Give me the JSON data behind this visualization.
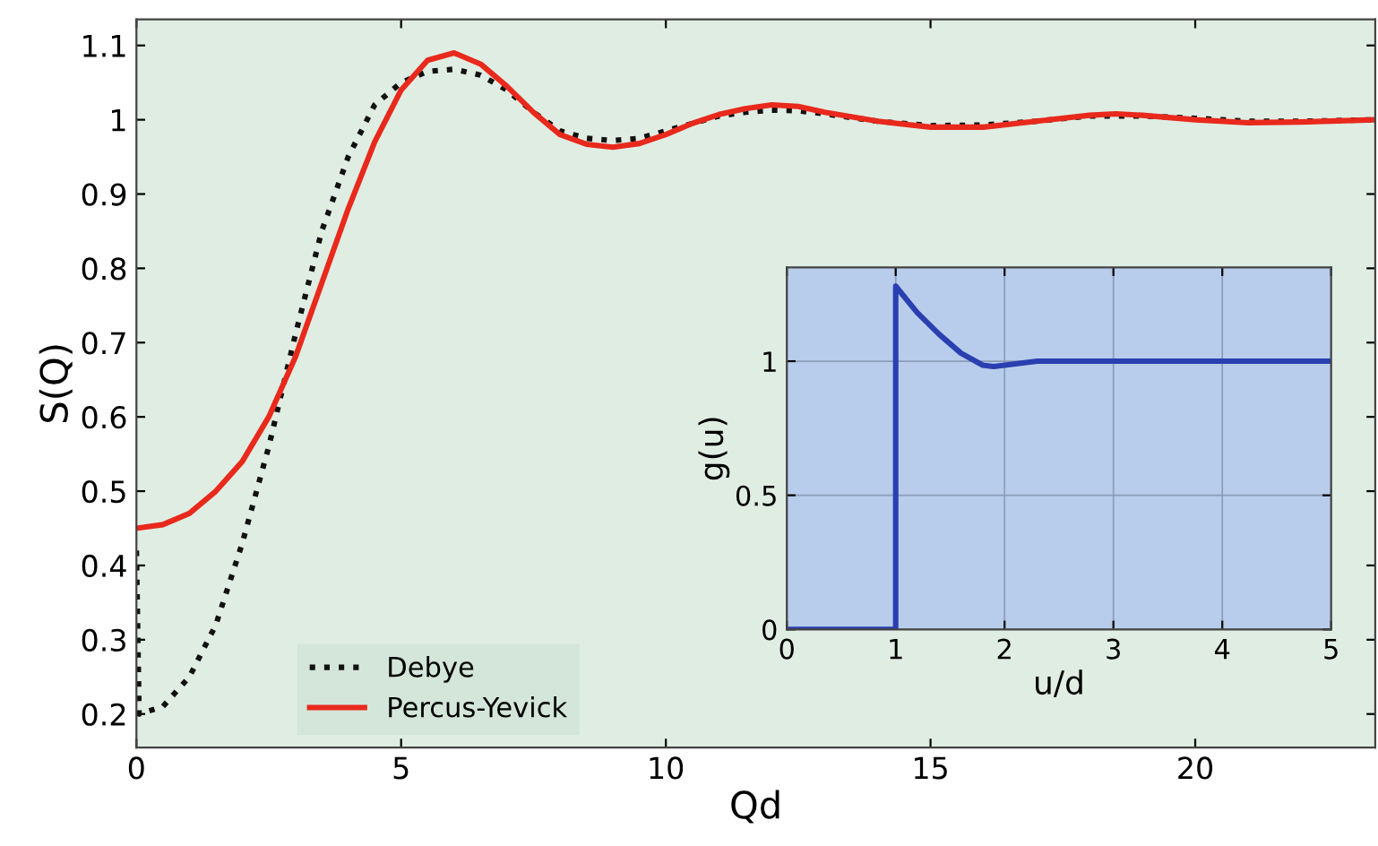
{
  "chart_data": [
    {
      "type": "line",
      "xlabel": "Qd",
      "ylabel": "S(Q)",
      "xlim": [
        0,
        23.4
      ],
      "ylim": [
        0.155,
        1.135
      ],
      "xticks": [
        0,
        5,
        10,
        15,
        20
      ],
      "yticks": [
        0.2,
        0.3,
        0.4,
        0.5,
        0.6,
        0.7,
        0.8,
        0.9,
        1,
        1.1
      ],
      "grid": false,
      "legend": "bottom left",
      "series": [
        {
          "name": "Debye",
          "color": "#111111",
          "line_style": "dotted",
          "x": [
            0,
            0.05,
            0.5,
            1,
            1.5,
            2,
            2.5,
            3,
            3.5,
            4,
            4.5,
            5,
            5.5,
            6,
            6.5,
            7,
            7.5,
            8,
            8.5,
            9,
            9.5,
            10,
            10.5,
            11,
            11.5,
            12,
            12.5,
            13,
            14,
            15,
            16,
            17,
            18,
            19,
            20,
            21,
            22,
            23.4
          ],
          "values": [
            0.42,
            0.2,
            0.21,
            0.25,
            0.32,
            0.43,
            0.56,
            0.71,
            0.85,
            0.95,
            1.02,
            1.05,
            1.065,
            1.068,
            1.06,
            1.04,
            1.01,
            0.985,
            0.975,
            0.972,
            0.975,
            0.985,
            0.995,
            1.005,
            1.01,
            1.013,
            1.012,
            1.008,
            0.998,
            0.992,
            0.993,
            0.998,
            1.005,
            1.005,
            1.002,
            0.998,
            0.998,
            1.0
          ]
        },
        {
          "name": "Percus-Yevick",
          "color": "#e8291c",
          "line_style": "solid",
          "x": [
            0,
            0.5,
            1,
            1.5,
            2,
            2.5,
            3,
            3.5,
            4,
            4.5,
            5,
            5.5,
            6,
            6.5,
            7,
            7.5,
            8,
            8.5,
            9,
            9.5,
            10,
            10.5,
            11,
            11.5,
            12,
            12.5,
            13,
            14,
            15,
            16,
            17,
            18,
            18.5,
            19,
            20,
            21,
            22,
            23.4
          ],
          "values": [
            0.45,
            0.455,
            0.47,
            0.5,
            0.54,
            0.6,
            0.68,
            0.78,
            0.88,
            0.97,
            1.04,
            1.08,
            1.09,
            1.075,
            1.045,
            1.01,
            0.98,
            0.967,
            0.963,
            0.968,
            0.98,
            0.995,
            1.007,
            1.015,
            1.02,
            1.018,
            1.01,
            0.998,
            0.99,
            0.99,
            0.998,
            1.006,
            1.008,
            1.006,
            1.0,
            0.996,
            0.997,
            1.0
          ]
        }
      ]
    },
    {
      "type": "line",
      "xlabel": "u/d",
      "ylabel": "g(u)",
      "xlim": [
        0,
        5
      ],
      "ylim": [
        0,
        1.35
      ],
      "xticks": [
        0,
        1,
        2,
        3,
        4,
        5
      ],
      "yticks": [
        0,
        0.5,
        1
      ],
      "grid": true,
      "legend": false,
      "series": [
        {
          "color": "#2a3fb0",
          "line_style": "solid",
          "x": [
            0,
            1,
            1,
            1.2,
            1.4,
            1.6,
            1.8,
            1.9,
            2.1,
            2.3,
            5
          ],
          "values": [
            0,
            0,
            1.28,
            1.18,
            1.1,
            1.03,
            0.985,
            0.98,
            0.99,
            1.0,
            1.0
          ]
        }
      ]
    }
  ]
}
